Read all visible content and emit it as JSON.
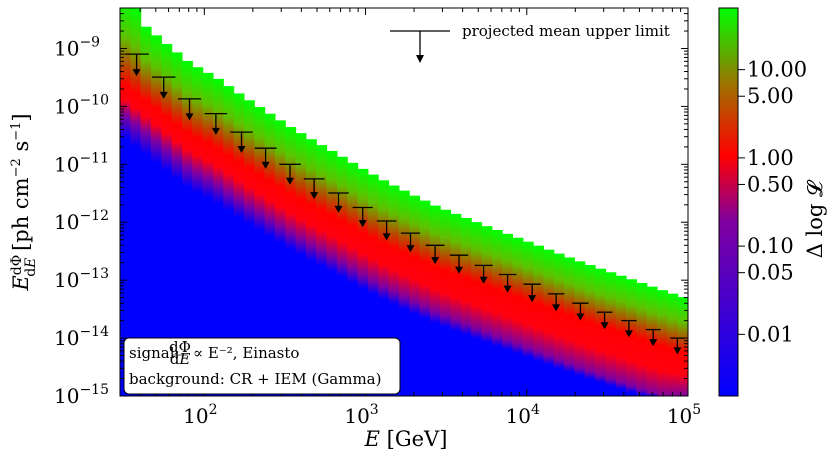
{
  "chart_data": {
    "type": "heatmap",
    "title": "",
    "xlabel": "E [GeV]",
    "ylabel": "E dΦ/dE [ph cm⁻² s⁻¹]",
    "xscale": "log",
    "yscale": "log",
    "xlim": [
      30,
      100000
    ],
    "ylim": [
      1e-15,
      5e-09
    ],
    "x_ticks": [
      {
        "value": 100,
        "base": "10",
        "exp": "2"
      },
      {
        "value": 1000,
        "base": "10",
        "exp": "3"
      },
      {
        "value": 10000,
        "base": "10",
        "exp": "4"
      },
      {
        "value": 100000,
        "base": "10",
        "exp": "5"
      }
    ],
    "y_ticks": [
      {
        "value": 1e-09,
        "base": "10",
        "exp": "−9"
      },
      {
        "value": 1e-10,
        "base": "10",
        "exp": "−10"
      },
      {
        "value": 1e-11,
        "base": "10",
        "exp": "−11"
      },
      {
        "value": 1e-12,
        "base": "10",
        "exp": "−12"
      },
      {
        "value": 1e-13,
        "base": "10",
        "exp": "−13"
      },
      {
        "value": 1e-14,
        "base": "10",
        "exp": "−14"
      },
      {
        "value": 1e-15,
        "base": "10",
        "exp": "−15"
      }
    ],
    "colorbar": {
      "label": "Δ log 𝓛",
      "scale": "log",
      "range": [
        0.002,
        50
      ],
      "ticks": [
        {
          "value": 10,
          "label": "10.00"
        },
        {
          "value": 5,
          "label": "5.00"
        },
        {
          "value": 1,
          "label": "1.00"
        },
        {
          "value": 0.5,
          "label": "0.50"
        },
        {
          "value": 0.1,
          "label": "0.10"
        },
        {
          "value": 0.05,
          "label": "0.05"
        },
        {
          "value": 0.01,
          "label": "0.01"
        }
      ],
      "colors": [
        "#0000ff",
        "#ff0000",
        "#00ff00"
      ]
    },
    "bins": {
      "x_edges": [
        30,
        100000
      ],
      "count": 55,
      "upper_limit_ratio": 1e-12,
      "top_ratio": 6e-12,
      "red_ratio_at_start": 0.2,
      "red_ratio_at_end": 0.6,
      "blue_ratio_at_start": 0.06,
      "blue_ratio_at_end": 0.08
    },
    "upper_limits": {
      "x": [
        38,
        56,
        81,
        118,
        170,
        240,
        340,
        480,
        680,
        960,
        1350,
        1900,
        2700,
        3800,
        5400,
        7600,
        10800,
        15200,
        21500,
        30400,
        43000,
        60800,
        86000
      ],
      "y": [
        8e-10,
        3.2e-10,
        1.35e-10,
        7.5e-11,
        3.6e-11,
        1.9e-11,
        1e-11,
        5.6e-12,
        3.2e-12,
        1.8e-12,
        1.05e-12,
        6.5e-13,
        4e-13,
        2.7e-13,
        1.8e-13,
        1.25e-13,
        8.5e-14,
        5.8e-14,
        4e-14,
        2.8e-14,
        2e-14,
        1.4e-14,
        1e-14
      ]
    },
    "legend": {
      "label": "projected mean upper limit",
      "placement": "top-right"
    },
    "annotation": {
      "line1_prefix": "signal:",
      "line1_suffix": "∝ E⁻², Einasto",
      "line2": "background: CR + IEM (Gamma)",
      "placement": "bottom-left"
    }
  }
}
